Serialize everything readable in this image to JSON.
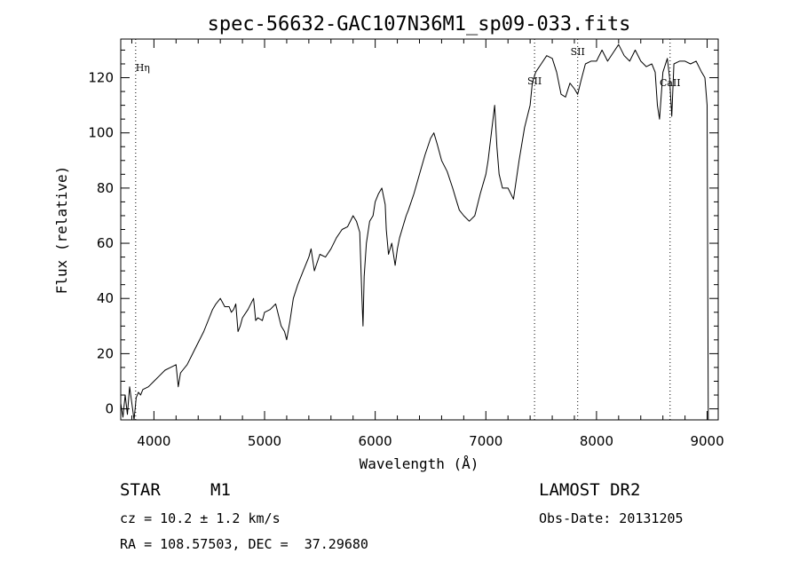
{
  "chart_data": {
    "type": "line",
    "title": "spec-56632-GAC107N36M1_sp09-033.fits",
    "xlabel": "Wavelength (Å)",
    "ylabel": "Flux (relative)",
    "xlim": [
      3700,
      9100
    ],
    "ylim": [
      -4,
      134
    ],
    "xticks": [
      4000,
      5000,
      6000,
      7000,
      8000,
      9000
    ],
    "xtick_labels": [
      "4000",
      "5000",
      "6000",
      "7000",
      "8000",
      "9000"
    ],
    "yticks": [
      0,
      20,
      40,
      60,
      80,
      100,
      120
    ],
    "ytick_labels": [
      "0",
      "20",
      "40",
      "60",
      "80",
      "100",
      "120"
    ],
    "lines": [
      {
        "label": "Hη",
        "wavelength": 3835
      },
      {
        "label": "SII",
        "wavelength": 7440
      },
      {
        "label": "SII",
        "wavelength": 7830
      },
      {
        "label": "CaII",
        "wavelength": 8665
      }
    ],
    "series": [
      {
        "name": "spectrum",
        "x": [
          3700,
          3720,
          3740,
          3760,
          3780,
          3800,
          3820,
          3840,
          3860,
          3880,
          3900,
          3950,
          4000,
          4050,
          4100,
          4150,
          4200,
          4220,
          4240,
          4260,
          4300,
          4350,
          4400,
          4450,
          4500,
          4530,
          4560,
          4600,
          4640,
          4680,
          4700,
          4720,
          4740,
          4760,
          4780,
          4800,
          4850,
          4900,
          4920,
          4940,
          4980,
          5000,
          5050,
          5100,
          5150,
          5180,
          5200,
          5230,
          5260,
          5300,
          5350,
          5400,
          5420,
          5450,
          5500,
          5550,
          5600,
          5650,
          5700,
          5750,
          5800,
          5830,
          5860,
          5880,
          5890,
          5900,
          5920,
          5950,
          5980,
          6000,
          6030,
          6060,
          6090,
          6100,
          6120,
          6150,
          6180,
          6200,
          6220,
          6250,
          6280,
          6300,
          6350,
          6400,
          6450,
          6500,
          6530,
          6560,
          6600,
          6650,
          6700,
          6730,
          6760,
          6800,
          6850,
          6900,
          6950,
          7000,
          7020,
          7050,
          7080,
          7100,
          7120,
          7150,
          7200,
          7250,
          7300,
          7350,
          7400,
          7420,
          7450,
          7500,
          7550,
          7600,
          7640,
          7680,
          7720,
          7760,
          7800,
          7830,
          7860,
          7900,
          7950,
          8000,
          8050,
          8100,
          8150,
          8200,
          8250,
          8300,
          8350,
          8400,
          8450,
          8500,
          8530,
          8550,
          8570,
          8600,
          8640,
          8660,
          8680,
          8700,
          8750,
          8800,
          8850,
          8900,
          8950,
          8980,
          9000,
          9010
        ],
        "values": [
          2,
          -3,
          5,
          -2,
          8,
          2,
          -4,
          4,
          6,
          5,
          7,
          8,
          10,
          12,
          14,
          15,
          16,
          8,
          13,
          14,
          16,
          20,
          24,
          28,
          33,
          36,
          38,
          40,
          37,
          37,
          35,
          36,
          38,
          28,
          30,
          33,
          36,
          40,
          32,
          33,
          32,
          35,
          36,
          38,
          30,
          28,
          25,
          32,
          40,
          45,
          50,
          55,
          58,
          50,
          56,
          55,
          58,
          62,
          65,
          66,
          70,
          68,
          64,
          40,
          30,
          48,
          60,
          68,
          70,
          75,
          78,
          80,
          74,
          65,
          56,
          60,
          52,
          58,
          62,
          66,
          70,
          72,
          78,
          85,
          92,
          98,
          100,
          96,
          90,
          86,
          80,
          76,
          72,
          70,
          68,
          70,
          78,
          85,
          90,
          100,
          110,
          95,
          85,
          80,
          80,
          76,
          90,
          102,
          110,
          118,
          122,
          125,
          128,
          127,
          122,
          114,
          113,
          118,
          116,
          114,
          119,
          125,
          126,
          126,
          130,
          126,
          129,
          132,
          128,
          126,
          130,
          126,
          124,
          125,
          122,
          110,
          105,
          122,
          127,
          120,
          106,
          125,
          126,
          126,
          125,
          126,
          122,
          120,
          110,
          -4
        ]
      }
    ]
  },
  "info": {
    "class": "STAR",
    "subclass": "M1",
    "survey": "LAMOST DR2",
    "cz": "cz = 10.2 ± 1.2 km/s",
    "obsdate": "Obs-Date: 20131205",
    "radec": "RA = 108.57503, DEC =  37.29680"
  }
}
